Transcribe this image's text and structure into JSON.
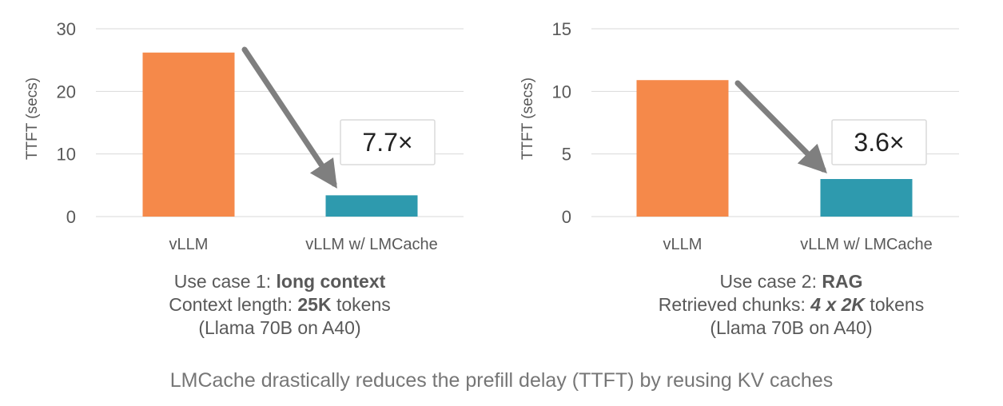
{
  "chart_data": [
    {
      "type": "bar",
      "categories": [
        "vLLM",
        "vLLM w/ LMCache"
      ],
      "values": [
        26.2,
        3.4
      ],
      "ylabel": "TTFT (secs)",
      "ylim": [
        0,
        30
      ],
      "yticks": [
        0,
        10,
        20,
        30
      ],
      "bar_colors": [
        "#F5894A",
        "#2E9AAE"
      ],
      "grid": true,
      "annotation": "7.7×"
    },
    {
      "type": "bar",
      "categories": [
        "vLLM",
        "vLLM w/ LMCache"
      ],
      "values": [
        10.9,
        3.0
      ],
      "ylabel": "TTFT (secs)",
      "ylim": [
        0,
        15
      ],
      "yticks": [
        0,
        5,
        10,
        15
      ],
      "bar_colors": [
        "#F5894A",
        "#2E9AAE"
      ],
      "grid": true,
      "annotation": "3.6×"
    }
  ],
  "captions": [
    {
      "line1_prefix": "Use case 1: ",
      "line1_bold": "long context",
      "line2_prefix": "Context length: ",
      "line2_bold": "25K",
      "line2_suffix": " tokens",
      "line3": "(Llama 70B on A40)"
    },
    {
      "line1_prefix": "Use case 2: ",
      "line1_bold": "RAG",
      "line2_prefix": "Retrieved chunks: ",
      "line2_bold": "4 x 2K",
      "line2_suffix": " tokens",
      "line3": "(Llama 70B on A40)"
    }
  ],
  "footer": "LMCache drastically reduces the prefill delay (TTFT) by reusing KV caches",
  "colors": {
    "arrow": "#7F7F7F",
    "grid": "#D9D9D9",
    "text": "#595959"
  }
}
